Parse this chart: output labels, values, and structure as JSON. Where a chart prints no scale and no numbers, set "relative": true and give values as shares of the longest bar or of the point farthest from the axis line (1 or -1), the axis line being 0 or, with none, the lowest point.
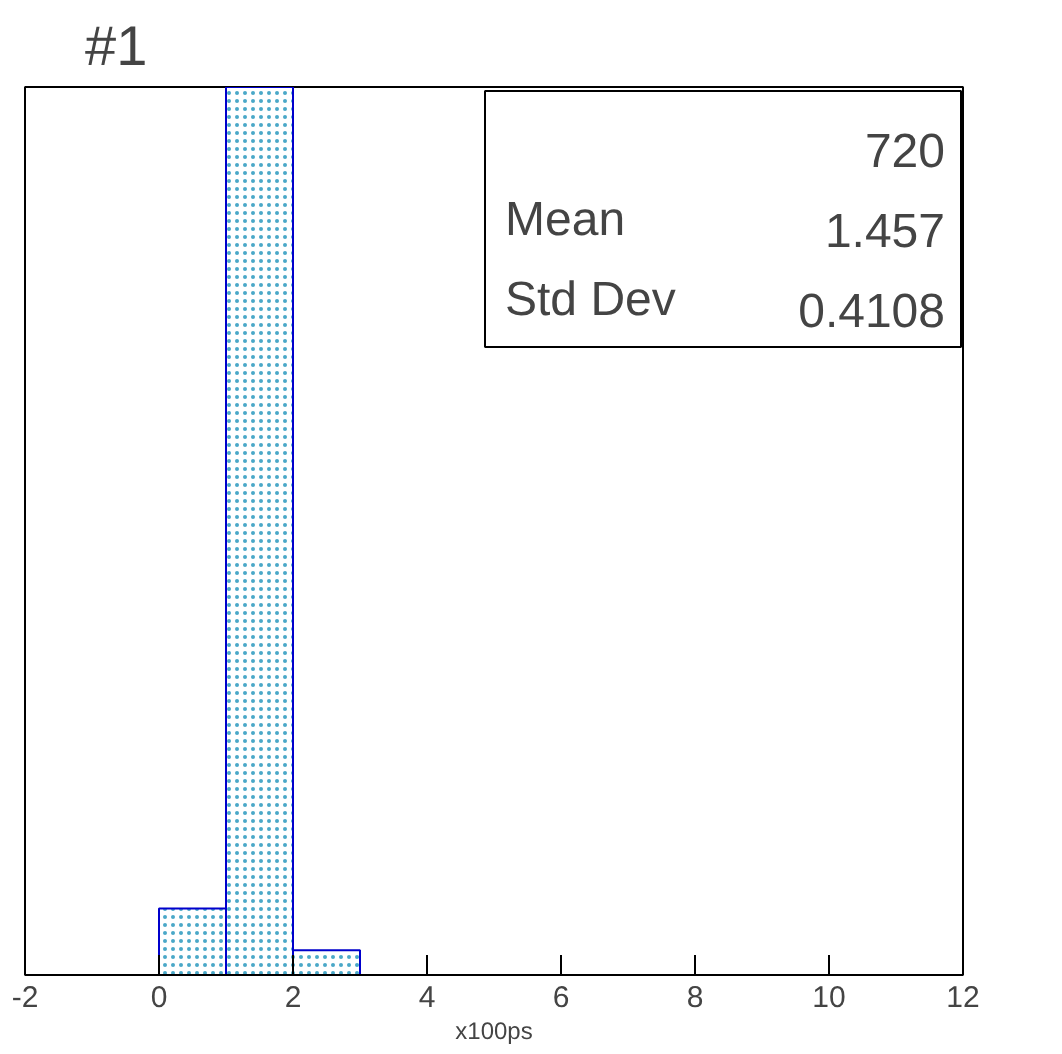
{
  "chart_data": {
    "type": "bar",
    "title": "#1",
    "xlabel": "x100ps",
    "relative": true,
    "x": [
      0.5,
      1.5,
      2.5
    ],
    "values": [
      0.075,
      1,
      0.028
    ],
    "color": "#0000cc",
    "xlim": [
      -2,
      12
    ],
    "xticks": [
      -2,
      0,
      2,
      4,
      6,
      8,
      10,
      12
    ],
    "grid": false,
    "annotations": [
      "720",
      "Mean 1.457",
      "Std Dev 0.4108"
    ]
  }
}
